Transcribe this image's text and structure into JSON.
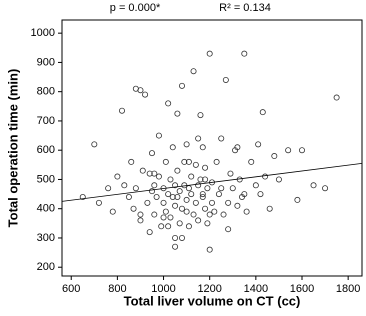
{
  "chart_data": {
    "type": "scatter",
    "annotations": [
      "p = 0.000*",
      "R² = 0.134"
    ],
    "xlabel": "Total liver volume on CT (cc)",
    "ylabel": "Total operation time (min)",
    "xlim": [
      560,
      1860
    ],
    "ylim": [
      170,
      1045
    ],
    "xticks": [
      600,
      800,
      1000,
      1200,
      1400,
      1600,
      1800
    ],
    "yticks": [
      200,
      300,
      400,
      500,
      600,
      700,
      800,
      900,
      1000
    ],
    "color": "#333333",
    "trendline": {
      "x": [
        560,
        1860
      ],
      "y": [
        425,
        555
      ]
    },
    "x": [
      650,
      700,
      720,
      760,
      780,
      800,
      820,
      830,
      850,
      860,
      870,
      880,
      880,
      900,
      900,
      910,
      920,
      930,
      940,
      950,
      950,
      960,
      960,
      970,
      980,
      980,
      990,
      1000,
      1000,
      1010,
      1010,
      1020,
      1020,
      1030,
      1030,
      1040,
      1040,
      1050,
      1050,
      1050,
      1060,
      1060,
      1070,
      1070,
      1080,
      1080,
      1090,
      1090,
      1100,
      1100,
      1100,
      1110,
      1110,
      1120,
      1120,
      1130,
      1130,
      1140,
      1140,
      1150,
      1150,
      1160,
      1160,
      1170,
      1170,
      1180,
      1180,
      1190,
      1190,
      1200,
      1200,
      1210,
      1210,
      1220,
      1230,
      1240,
      1250,
      1260,
      1270,
      1280,
      1290,
      1300,
      1310,
      1320,
      1330,
      1340,
      1350,
      1360,
      1380,
      1400,
      1410,
      1420,
      1430,
      1440,
      1460,
      1480,
      1500,
      1540,
      1580,
      1600,
      1650,
      1700,
      1750,
      1350,
      1200,
      1180,
      1050,
      940,
      1280,
      1150,
      1020,
      1110,
      900,
      960,
      1080,
      1250,
      1320,
      1000,
      1170,
      1060
    ],
    "values": [
      440,
      620,
      420,
      470,
      390,
      510,
      735,
      480,
      440,
      560,
      400,
      810,
      470,
      805,
      360,
      530,
      790,
      420,
      320,
      460,
      590,
      380,
      480,
      440,
      650,
      510,
      340,
      470,
      420,
      560,
      390,
      760,
      450,
      500,
      370,
      440,
      610,
      270,
      480,
      410,
      725,
      530,
      460,
      350,
      400,
      820,
      480,
      560,
      430,
      390,
      620,
      470,
      340,
      510,
      450,
      380,
      870,
      550,
      420,
      480,
      360,
      500,
      720,
      440,
      610,
      400,
      540,
      470,
      350,
      930,
      260,
      490,
      420,
      390,
      560,
      450,
      640,
      380,
      840,
      330,
      520,
      470,
      600,
      410,
      500,
      440,
      930,
      390,
      560,
      480,
      620,
      450,
      730,
      510,
      400,
      580,
      500,
      600,
      430,
      600,
      480,
      470,
      780,
      450,
      380,
      500,
      300,
      520,
      420,
      640,
      340,
      560,
      380,
      520,
      300,
      470,
      610,
      370,
      450,
      440
    ]
  }
}
